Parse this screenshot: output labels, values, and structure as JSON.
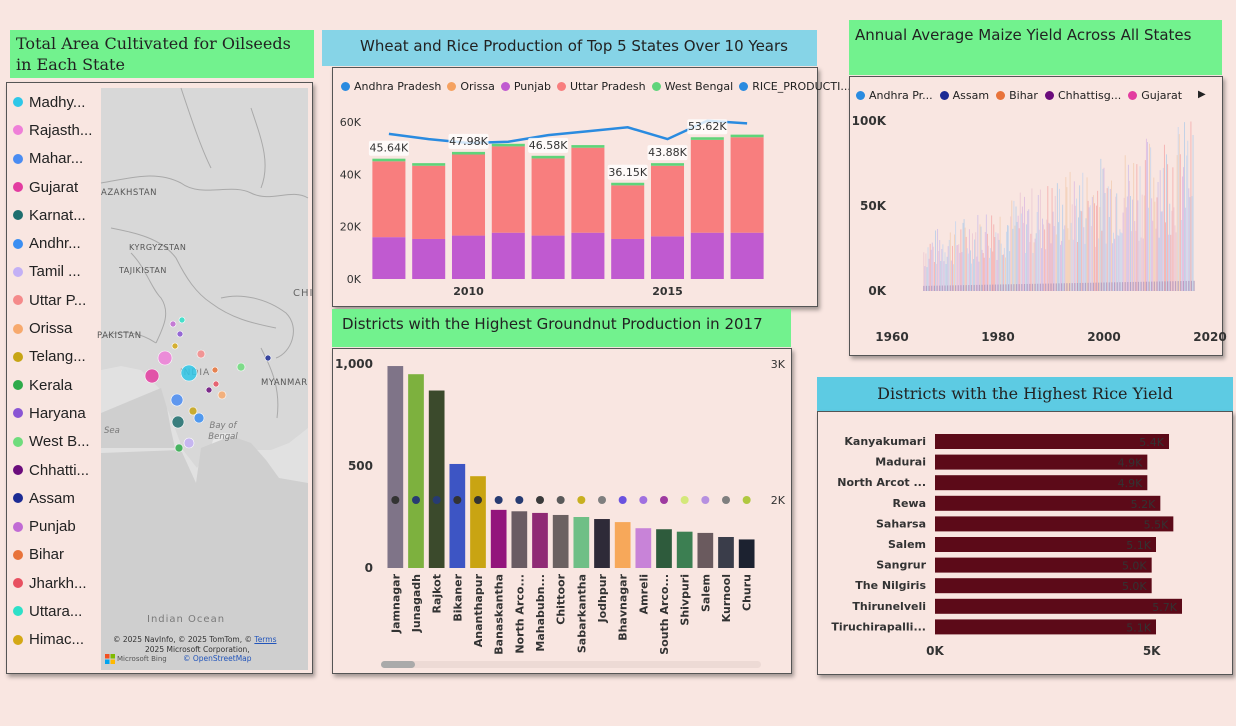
{
  "oilseeds": {
    "title": "Total Area Cultivated for Oilseeds in Each State",
    "states": [
      {
        "label": "Madhy...",
        "color": "#2ec7e8"
      },
      {
        "label": "Rajasth...",
        "color": "#ef7fd8"
      },
      {
        "label": "Mahar...",
        "color": "#4a8cf2"
      },
      {
        "label": "Gujarat",
        "color": "#e33ca0"
      },
      {
        "label": "Karnat...",
        "color": "#1f6e6e"
      },
      {
        "label": "Andhr...",
        "color": "#3a8ef2"
      },
      {
        "label": "Tamil ...",
        "color": "#c3b0f5"
      },
      {
        "label": "Uttar P...",
        "color": "#f58a8a"
      },
      {
        "label": "Orissa",
        "color": "#f7a96d"
      },
      {
        "label": "Telang...",
        "color": "#c7a515"
      },
      {
        "label": "Kerala",
        "color": "#2eaa4a"
      },
      {
        "label": "Haryana",
        "color": "#8a55d4"
      },
      {
        "label": "West B...",
        "color": "#6fdc7c"
      },
      {
        "label": "Chhatti...",
        "color": "#6b0c7c"
      },
      {
        "label": "Assam",
        "color": "#1c2b94"
      },
      {
        "label": "Punjab",
        "color": "#c16bd4"
      },
      {
        "label": "Bihar",
        "color": "#e8733a"
      },
      {
        "label": "Jharkh...",
        "color": "#e85060"
      },
      {
        "label": "Uttara...",
        "color": "#2ee0c8"
      },
      {
        "label": "Himac...",
        "color": "#d4a815"
      }
    ],
    "map": {
      "labels": [
        "AZAKHSTAN",
        "KYRGYZSTAN",
        "TAJIKISTAN",
        "PAKISTAN",
        "INDIA",
        "MYANMAR",
        "Bay of Bengal",
        "Sea",
        "Indian Ocean",
        "CHI"
      ],
      "credit1": "© 2025 NavInfo, © 2025 TomTom, ©",
      "credit_terms": "Terms",
      "credit2": "2025 Microsoft Corporation,",
      "credit3": "© OpenStreetMap",
      "bing": "Microsoft Bing"
    }
  },
  "wheat_rice": {
    "title": "Wheat and Rice Production of Top 5 States Over 10 Years",
    "legend": [
      {
        "name": "Andhra Pradesh",
        "color": "#2a8be0"
      },
      {
        "name": "Orissa",
        "color": "#f5a160"
      },
      {
        "name": "Punjab",
        "color": "#c05ad0"
      },
      {
        "name": "Uttar Pradesh",
        "color": "#f87e7e"
      },
      {
        "name": "West Bengal",
        "color": "#5fd47a"
      },
      {
        "name": "RICE_PRODUCTI...",
        "color": "#2a8be0"
      }
    ]
  },
  "maize": {
    "title": "Annual Average Maize Yield Across All States",
    "legend": [
      {
        "name": "Andhra Pr...",
        "color": "#2a8be0"
      },
      {
        "name": "Assam",
        "color": "#1c2b94"
      },
      {
        "name": "Bihar",
        "color": "#e8733a"
      },
      {
        "name": "Chhattisg...",
        "color": "#6b0c7c"
      },
      {
        "name": "Gujarat",
        "color": "#e33ca0"
      }
    ],
    "more": "▶"
  },
  "groundnut": {
    "title": "Districts with the Highest Groundnut Production in 2017"
  },
  "rice_yield": {
    "title": "Districts with the Highest Rice Yield"
  },
  "chart_data": [
    {
      "type": "bar",
      "title": "Wheat and Rice Production of Top 5 States Over 10 Years",
      "stacked": true,
      "x": [
        2008,
        2009,
        2010,
        2011,
        2012,
        2013,
        2014,
        2015,
        2016,
        2017
      ],
      "x_ticks": [
        "2010",
        "2015"
      ],
      "ylim": [
        0,
        65000
      ],
      "y_ticks": [
        "0K",
        "20K",
        "40K",
        "60K"
      ],
      "series": [
        {
          "name": "Punjab",
          "color": "#c05ad0",
          "values": [
            16000,
            15300,
            16600,
            17700,
            16600,
            17700,
            15300,
            16300,
            17700,
            17700
          ]
        },
        {
          "name": "Uttar Pradesh",
          "color": "#f87e7e",
          "values": [
            29000,
            28000,
            31000,
            33000,
            29500,
            32500,
            20500,
            27000,
            35500,
            36500
          ]
        },
        {
          "name": "West Bengal",
          "color": "#5fd47a",
          "values": [
            1000,
            1000,
            1000,
            1000,
            1000,
            1000,
            1000,
            1000,
            1000,
            1000
          ]
        },
        {
          "name": "RICE_PRODUCTI...",
          "color": "#2a8be0",
          "type": "line",
          "values": [
            55500,
            53500,
            52000,
            52500,
            55000,
            56500,
            58000,
            53500,
            60500,
            59500
          ]
        }
      ],
      "data_labels": [
        {
          "x": 2008,
          "text": "45.64K"
        },
        {
          "x": 2010,
          "text": "47.98K"
        },
        {
          "x": 2012,
          "text": "46.58K"
        },
        {
          "x": 2014,
          "text": "36.15K"
        },
        {
          "x": 2015,
          "text": "43.88K"
        },
        {
          "x": 2016,
          "text": "53.62K"
        }
      ]
    },
    {
      "type": "bar",
      "title": "Districts with the Highest Groundnut Production in 2017",
      "categories": [
        "Jamnagar",
        "Junagadh",
        "Rajkot",
        "Bikaner",
        "Ananthapur",
        "Banaskantha",
        "North Arco...",
        "Mahabubn...",
        "Chittoor",
        "Sabarkantha",
        "Jodhpur",
        "Bhavnagar",
        "Amreli",
        "South Arco...",
        "Shivpuri",
        "Salem",
        "Kurnool",
        "Churu"
      ],
      "values": [
        990,
        950,
        870,
        510,
        450,
        285,
        278,
        270,
        260,
        250,
        240,
        225,
        195,
        190,
        178,
        172,
        152,
        140
      ],
      "colors": [
        "#7f7488",
        "#7db13e",
        "#3b4a2c",
        "#3d55c4",
        "#c9a412",
        "#93157c",
        "#6a5c63",
        "#8f2a74",
        "#6b6161",
        "#6fbf86",
        "#2e2a38",
        "#f7a85a",
        "#c883d8",
        "#2e5b3c",
        "#3c7f52",
        "#6a5a5e",
        "#3a3d4a",
        "#1c2230"
      ],
      "ylim": [
        0,
        1000
      ],
      "y_ticks": [
        "0",
        "500",
        "1,000"
      ],
      "secondary_axis": {
        "ylim": [
          1500,
          3000
        ],
        "ticks": [
          "2K",
          "3K"
        ]
      },
      "dots": {
        "value": 2000,
        "colors": [
          "#333333",
          "#273b72",
          "#273b72",
          "#333333",
          "#333333",
          "#273b72",
          "#273b72",
          "#3a3a3a",
          "#5a5a5a",
          "#c8b020",
          "#7f7f7f",
          "#6a52e0",
          "#a070e0",
          "#9e3aa0",
          "#d4e87a",
          "#b690e0",
          "#7f7f7f",
          "#b0c840"
        ]
      }
    },
    {
      "type": "bar",
      "orientation": "horizontal",
      "title": "Districts with the Highest Rice Yield",
      "categories": [
        "Kanyakumari",
        "Madurai",
        "North Arcot ...",
        "Rewa",
        "Saharsa",
        "Salem",
        "Sangrur",
        "The Nilgiris",
        "Thirunelveli",
        "Tiruchirapalli..."
      ],
      "values": [
        5400,
        4900,
        4900,
        5200,
        5500,
        5100,
        5000,
        5000,
        5700,
        5100
      ],
      "labels": [
        "5.4K",
        "4.9K",
        "4.9K",
        "5.2K",
        "5.5K",
        "5.1K",
        "5.0K",
        "5.0K",
        "5.7K",
        "5.1K"
      ],
      "color": "#5c0a18",
      "x_ticks": [
        "0K",
        "5K"
      ],
      "xlim": [
        0,
        6000
      ]
    },
    {
      "type": "bar",
      "title": "Annual Average Maize Yield Across All States",
      "x_ticks": [
        "1960",
        "1980",
        "2000",
        "2020"
      ],
      "xlim": [
        1960,
        2020
      ],
      "y_ticks": [
        "0K",
        "50K",
        "100K"
      ],
      "ylim": [
        0,
        100000
      ],
      "x_start": 1966,
      "x_end": 2017,
      "series": [
        {
          "name": "Andhra Pr...",
          "color": "#2a8be0"
        },
        {
          "name": "Assam",
          "color": "#1c2b94"
        },
        {
          "name": "Bihar",
          "color": "#e8733a"
        },
        {
          "name": "Chhattisg...",
          "color": "#6b0c7c"
        },
        {
          "name": "Gujarat",
          "color": "#e33ca0"
        }
      ]
    }
  ]
}
